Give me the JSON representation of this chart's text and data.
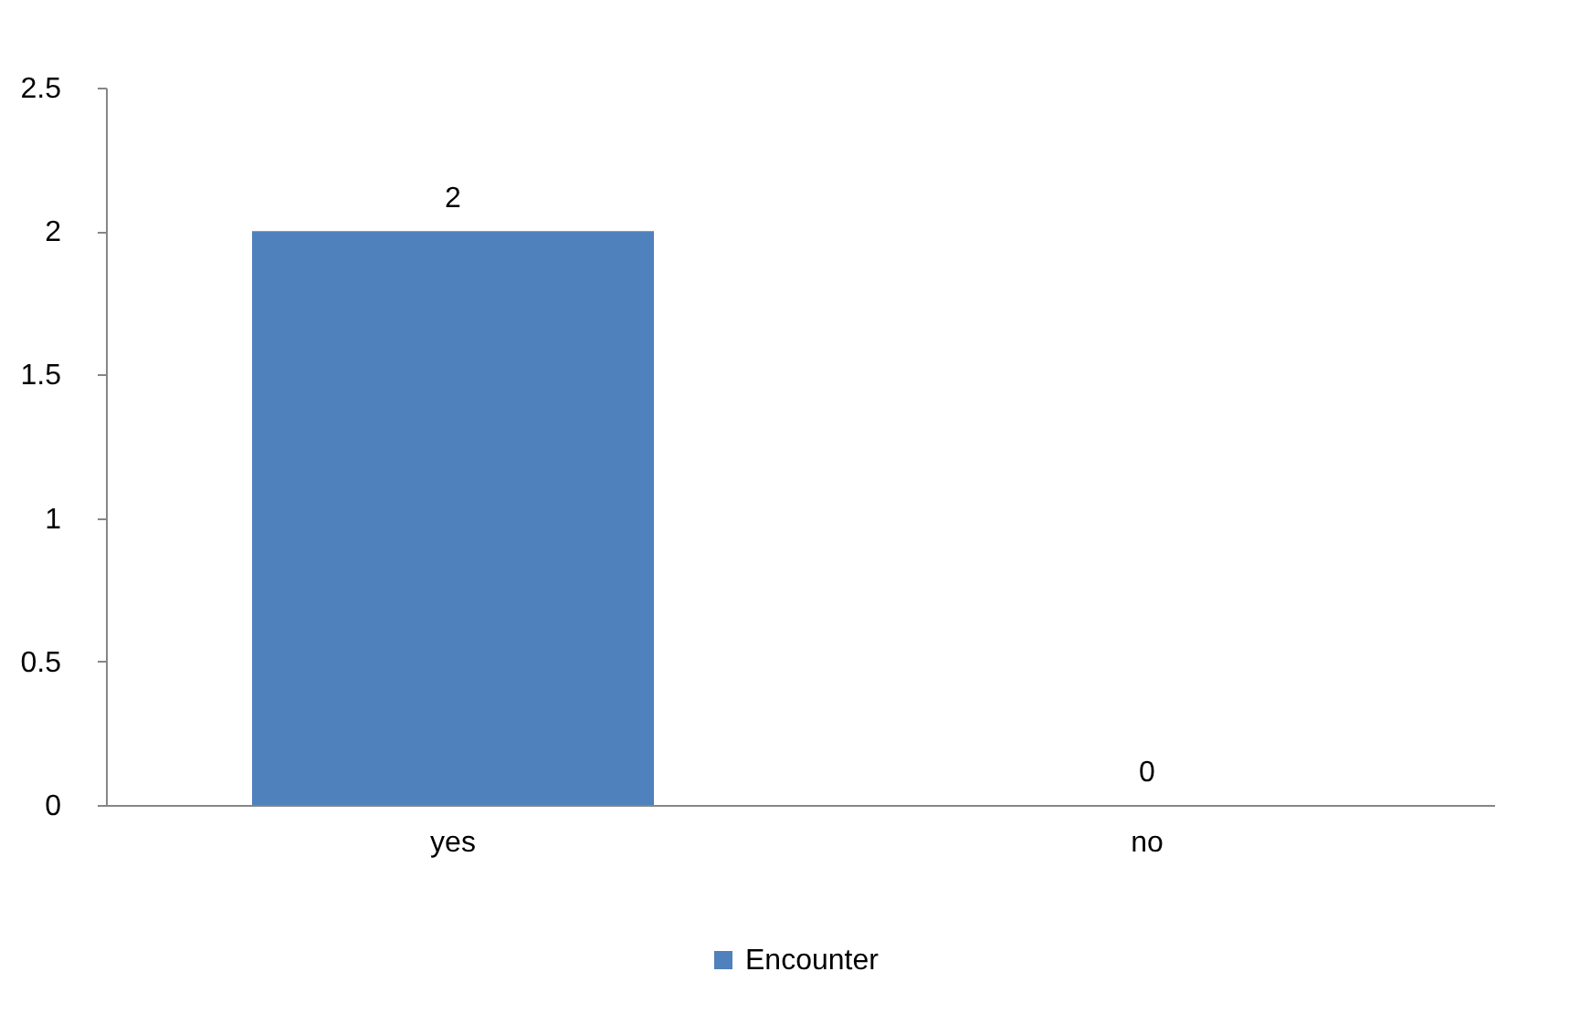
{
  "chart_data": {
    "type": "bar",
    "categories": [
      "yes",
      "no"
    ],
    "series": [
      {
        "name": "Encounter",
        "color": "#4f81bd",
        "values": [
          2,
          0
        ]
      }
    ],
    "ylim": [
      0,
      2.5
    ],
    "yticks": [
      0,
      0.5,
      1,
      1.5,
      2,
      2.5
    ],
    "grid": false,
    "data_labels": true,
    "legend": "bottom"
  }
}
